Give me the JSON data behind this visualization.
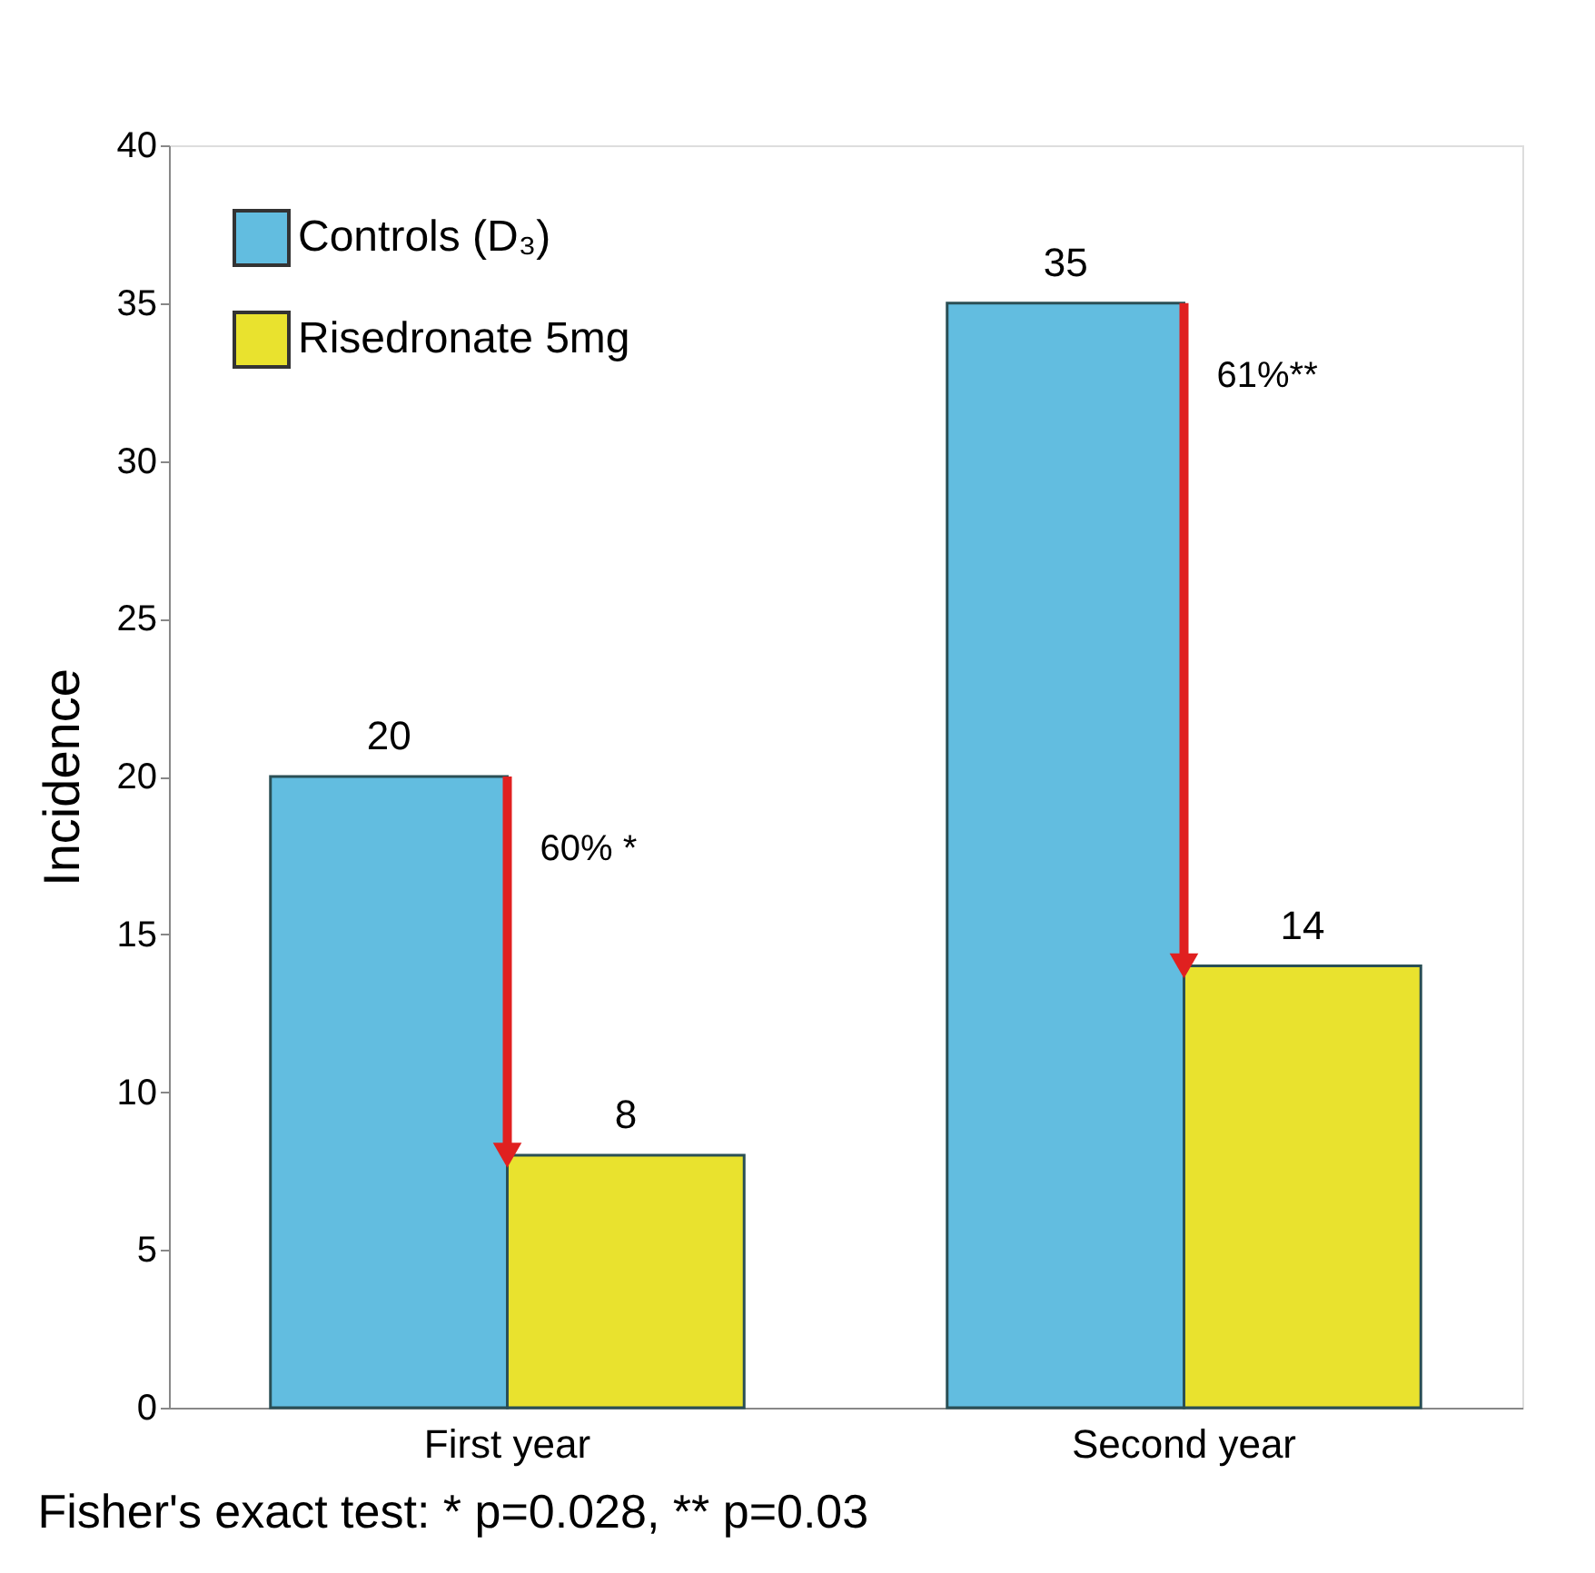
{
  "chart_data": {
    "type": "bar",
    "ylabel": "Incidence",
    "categories": [
      "First year",
      "Second year"
    ],
    "series": [
      {
        "name": "Controls (D₃)",
        "color": "#62bde0",
        "values": [
          20,
          35
        ]
      },
      {
        "name": "Risedronate 5mg",
        "color": "#e9e22e",
        "values": [
          8,
          14
        ]
      }
    ],
    "ylim": [
      0,
      40
    ],
    "yticks": [
      0,
      5,
      10,
      15,
      20,
      25,
      30,
      35,
      40
    ],
    "grid": false,
    "legend": "top left",
    "data_labels": true,
    "annotations": [
      "60% *",
      "61%**",
      "Fisher's exact test:  * p=0.028,                  **  p=0.03"
    ]
  }
}
